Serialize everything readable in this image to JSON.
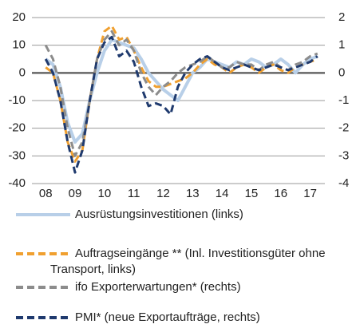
{
  "chart_data": {
    "type": "line",
    "x": [
      2008,
      2008.25,
      2008.5,
      2008.75,
      2009,
      2009.25,
      2009.5,
      2009.75,
      2010,
      2010.25,
      2010.5,
      2010.75,
      2011,
      2011.25,
      2011.5,
      2011.75,
      2012,
      2012.25,
      2012.5,
      2012.75,
      2013,
      2013.25,
      2013.5,
      2013.75,
      2014,
      2014.25,
      2014.5,
      2014.75,
      2015,
      2015.25,
      2015.5,
      2015.75,
      2016,
      2016.25,
      2016.5,
      2016.75,
      2017,
      2017.25
    ],
    "xlim": [
      2007.75,
      2017.5
    ],
    "xticks": [
      {
        "value": 2008,
        "label": "08"
      },
      {
        "value": 2009,
        "label": "09"
      },
      {
        "value": 2010,
        "label": "10"
      },
      {
        "value": 2011,
        "label": "11"
      },
      {
        "value": 2012,
        "label": "12"
      },
      {
        "value": 2013,
        "label": "13"
      },
      {
        "value": 2014,
        "label": "14"
      },
      {
        "value": 2015,
        "label": "15"
      },
      {
        "value": 2016,
        "label": "16"
      },
      {
        "value": 2017,
        "label": "17"
      }
    ],
    "ylim": [
      -40,
      20
    ],
    "yticks": [
      -40,
      -30,
      -20,
      -10,
      0,
      10,
      20
    ],
    "y2lim": [
      -4,
      2
    ],
    "y2ticks": [
      -4,
      -3,
      -2,
      -1,
      0,
      1,
      2
    ],
    "grid": true,
    "series": [
      {
        "name": "Ausrüstungsinvestitionen (links)",
        "color": "#b8cfe8",
        "dash": false,
        "values": [
          5,
          3,
          -5,
          -18,
          -25,
          -22,
          -10,
          0,
          8,
          12,
          11,
          10,
          9,
          5,
          0,
          -3,
          -6,
          -8,
          -10,
          -5,
          0,
          2,
          5,
          4,
          3,
          2,
          4,
          3,
          5,
          4,
          2,
          3,
          5,
          3,
          0,
          3,
          5,
          6
        ]
      },
      {
        "name": "Auftragseingänge ** (Inl. Investitionsgüter ohne Transport, links)",
        "color": "#f0a030",
        "dash": true,
        "values": [
          2,
          0,
          -10,
          -25,
          -32,
          -28,
          -10,
          5,
          15,
          17,
          12,
          13,
          8,
          2,
          -3,
          -5,
          -5,
          -4,
          -3,
          -2,
          0,
          3,
          5,
          3,
          2,
          0,
          2,
          3,
          2,
          0,
          2,
          3,
          1,
          0,
          2,
          3,
          4,
          5
        ]
      },
      {
        "name": "ifo Exporterwartungen* (rechts)",
        "color": "#8c8c8c",
        "dash": true,
        "axis": "y2",
        "values": [
          1,
          0.5,
          -0.5,
          -2,
          -3,
          -2.5,
          -1,
          0.5,
          1.2,
          1.5,
          1,
          1.2,
          0.8,
          0,
          -0.5,
          -0.8,
          -0.5,
          -0.3,
          0,
          0.2,
          0.3,
          0.4,
          0.6,
          0.4,
          0.2,
          0.2,
          0.4,
          0.3,
          0.3,
          0.1,
          0.3,
          0.4,
          0.2,
          0.1,
          0.3,
          0.4,
          0.6,
          0.7
        ]
      },
      {
        "name": "PMI* (neue Exportaufträge, rechts)",
        "color": "#1f3a6e",
        "dash": true,
        "axis": "y2",
        "values": [
          0.5,
          0,
          -1,
          -2.5,
          -3.6,
          -2.8,
          -1,
          0.5,
          1.1,
          1.3,
          0.6,
          0.8,
          0.4,
          -0.5,
          -1.2,
          -1.1,
          -1.2,
          -1.5,
          -0.5,
          0,
          0.3,
          0.5,
          0.6,
          0.4,
          0.2,
          0.1,
          0.2,
          0.3,
          0.2,
          0.1,
          0.2,
          0.3,
          0.2,
          0.1,
          0.2,
          0.3,
          0.4,
          0.6
        ]
      }
    ]
  }
}
